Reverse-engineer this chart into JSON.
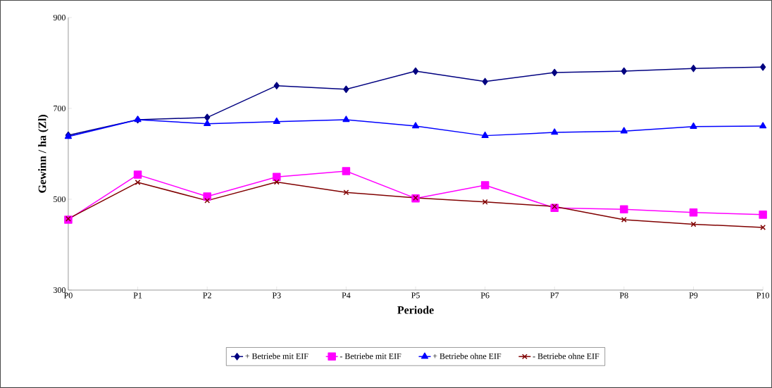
{
  "chart_data": {
    "type": "line",
    "xlabel": "Periode",
    "ylabel": "Gewinn / ha (Zl)",
    "categories": [
      "P0",
      "P1",
      "P2",
      "P3",
      "P4",
      "P5",
      "P6",
      "P7",
      "P8",
      "P9",
      "P10"
    ],
    "ylim": [
      300,
      900
    ],
    "yticks": [
      300,
      500,
      700,
      900
    ],
    "grid": false,
    "legend": "bottom",
    "line_style": "solid",
    "series": [
      {
        "name": "+ Betriebe mit EIF",
        "color": "#000080",
        "marker": "diamond",
        "values": [
          641,
          675,
          680,
          750,
          742,
          782,
          759,
          779,
          782,
          788,
          791
        ]
      },
      {
        "name": "- Betriebe mit EIF",
        "color": "#ff00ff",
        "marker": "square",
        "values": [
          455,
          554,
          506,
          549,
          562,
          502,
          531,
          481,
          478,
          471,
          466
        ]
      },
      {
        "name": "+ Betriebe ohne EIF",
        "color": "#0000ff",
        "marker": "triangle",
        "values": [
          638,
          675,
          666,
          671,
          675,
          661,
          640,
          647,
          650,
          660,
          661
        ]
      },
      {
        "name": "- Betriebe ohne EIF",
        "color": "#800000",
        "marker": "cross",
        "values": [
          457,
          537,
          497,
          538,
          515,
          503,
          494,
          484,
          455,
          445,
          438
        ]
      }
    ]
  }
}
